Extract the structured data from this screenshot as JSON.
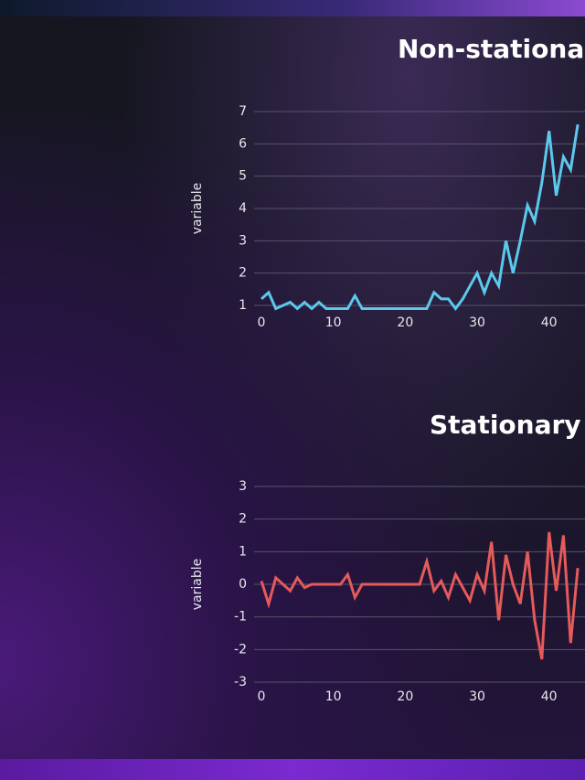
{
  "chart_data": [
    {
      "type": "line",
      "title": "Non-stationa",
      "y_label": "variable",
      "x": [
        0,
        1,
        2,
        3,
        4,
        5,
        6,
        7,
        8,
        9,
        10,
        11,
        12,
        13,
        14,
        15,
        16,
        17,
        18,
        19,
        20,
        21,
        22,
        23,
        24,
        25,
        26,
        27,
        28,
        29,
        30,
        31,
        32,
        33,
        34,
        35,
        36,
        37,
        38,
        39,
        40,
        41,
        42,
        43,
        44
      ],
      "series": [
        {
          "name": "variable",
          "color": "#5bc8ec",
          "values": [
            1.2,
            1.4,
            0.9,
            1.0,
            1.1,
            0.9,
            1.1,
            0.9,
            1.1,
            0.9,
            0.9,
            0.9,
            0.9,
            1.3,
            0.9,
            0.9,
            0.9,
            0.9,
            0.9,
            0.9,
            0.9,
            0.9,
            0.9,
            0.9,
            1.4,
            1.2,
            1.2,
            0.9,
            1.2,
            1.6,
            2.0,
            1.4,
            2.0,
            1.6,
            3.0,
            2.0,
            3.0,
            4.1,
            3.6,
            4.8,
            6.4,
            4.4,
            5.6,
            5.2,
            6.6
          ]
        }
      ],
      "xlim": [
        0,
        45
      ],
      "xticks": [
        0,
        10,
        20,
        30,
        40
      ],
      "ylim": [
        1,
        7
      ],
      "yticks": [
        1,
        2,
        3,
        4,
        5,
        6,
        7
      ],
      "grid": true
    },
    {
      "type": "line",
      "title": "Stationary",
      "y_label": "variable",
      "x": [
        0,
        1,
        2,
        3,
        4,
        5,
        6,
        7,
        8,
        9,
        10,
        11,
        12,
        13,
        14,
        15,
        16,
        17,
        18,
        19,
        20,
        21,
        22,
        23,
        24,
        25,
        26,
        27,
        28,
        29,
        30,
        31,
        32,
        33,
        34,
        35,
        36,
        37,
        38,
        39,
        40,
        41,
        42,
        43,
        44
      ],
      "series": [
        {
          "name": "variable",
          "color": "#e55a5a",
          "values": [
            0.1,
            -0.6,
            0.2,
            0.0,
            -0.2,
            0.2,
            -0.1,
            0.0,
            0.0,
            0.0,
            0.0,
            0.0,
            0.3,
            -0.4,
            0.0,
            0.0,
            0.0,
            0.0,
            0.0,
            0.0,
            0.0,
            0.0,
            0.0,
            0.7,
            -0.2,
            0.1,
            -0.4,
            0.3,
            -0.1,
            -0.5,
            0.3,
            -0.2,
            1.3,
            -1.1,
            0.9,
            0.0,
            -0.6,
            1.0,
            -1.1,
            -2.3,
            1.6,
            -0.2,
            1.5,
            -1.8,
            0.5
          ]
        }
      ],
      "xlim": [
        0,
        45
      ],
      "xticks": [
        0,
        10,
        20,
        30,
        40
      ],
      "ylim": [
        -3,
        3
      ],
      "yticks": [
        -3,
        -2,
        -1,
        0,
        1,
        2,
        3
      ],
      "grid": true
    }
  ]
}
